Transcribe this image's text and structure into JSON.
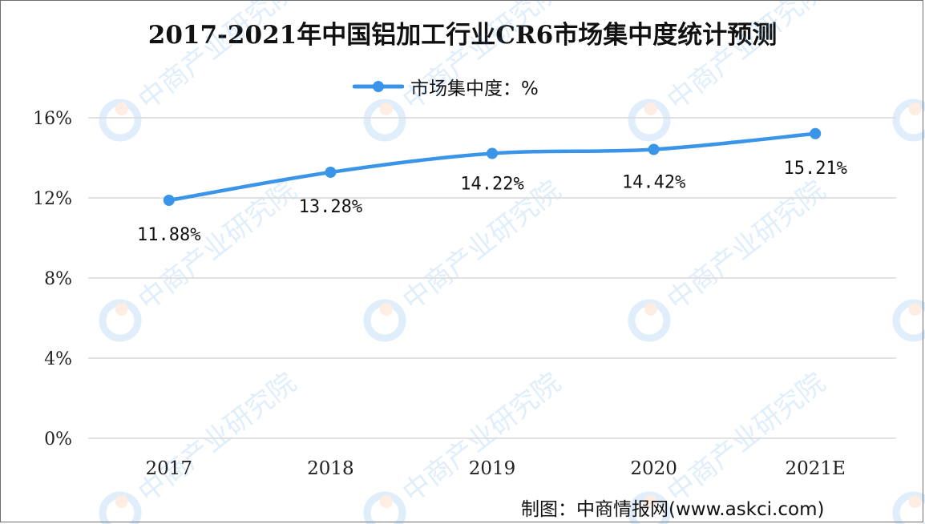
{
  "title": "2017-2021年中国铝加工行业CR6市场集中度统计预测",
  "legend_label": "市场集中度：%",
  "source": "制图：中商情报网(www.askci.com)",
  "watermark": "中商产业研究院",
  "colors": {
    "series": "#3a95e8",
    "grid": "#d9d9d9",
    "axis_text": "#222222"
  },
  "chart_data": {
    "type": "line",
    "categories": [
      "2017",
      "2018",
      "2019",
      "2020",
      "2021E"
    ],
    "series": [
      {
        "name": "市场集中度：%",
        "values": [
          11.88,
          13.28,
          14.22,
          14.42,
          15.21
        ]
      }
    ],
    "data_labels": [
      "11.88%",
      "13.28%",
      "14.22%",
      "14.42%",
      "15.21%"
    ],
    "yticks": [
      "0%",
      "4%",
      "8%",
      "12%",
      "16%"
    ],
    "ylim": [
      0,
      16
    ],
    "grid": true,
    "legend_position": "top-center"
  }
}
